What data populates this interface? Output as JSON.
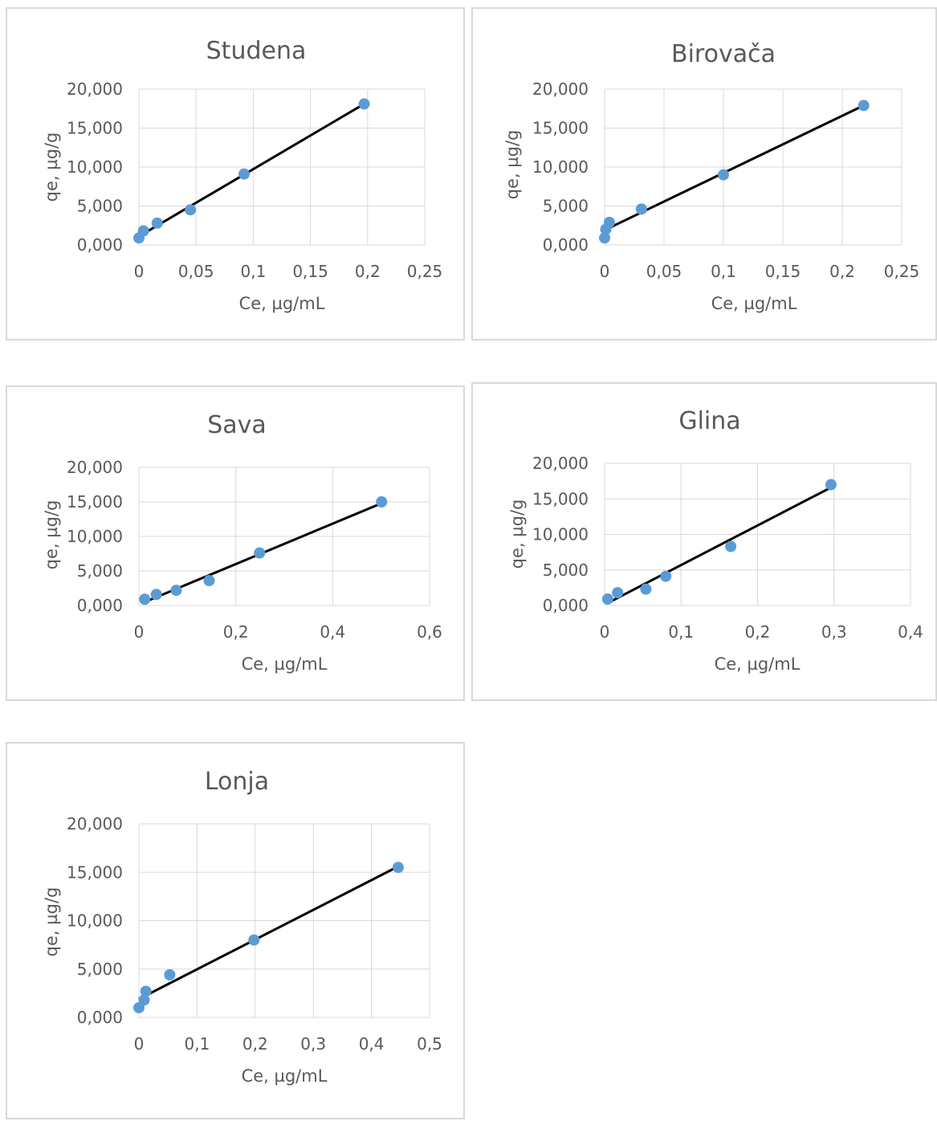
{
  "colors": {
    "marker": "#5b9bd5",
    "trendline": "#000000",
    "grid": "#d9d9d9",
    "text": "#595959"
  },
  "chart_data": [
    {
      "type": "scatter",
      "title": "Studena",
      "xlabel": "Ce, µg/mL",
      "ylabel": "qe, µg/g",
      "xlim": [
        0,
        0.25
      ],
      "ylim": [
        0,
        20
      ],
      "x_ticks": [
        "0",
        "0,05",
        "0,1",
        "0,15",
        "0,2",
        "0,25"
      ],
      "y_ticks": [
        "0,000",
        "5,000",
        "10,000",
        "15,000",
        "20,000"
      ],
      "x_tick_values": [
        0,
        0.05,
        0.1,
        0.15,
        0.2,
        0.25
      ],
      "y_tick_values": [
        0,
        5,
        10,
        15,
        20
      ],
      "grid": true,
      "legend": "none",
      "points": [
        [
          0.0,
          0.9
        ],
        [
          0.004,
          1.8
        ],
        [
          0.016,
          2.8
        ],
        [
          0.045,
          4.5
        ],
        [
          0.092,
          9.1
        ],
        [
          0.197,
          18.1
        ]
      ],
      "trendline": [
        [
          0.0,
          1.1
        ],
        [
          0.197,
          18.1
        ]
      ]
    },
    {
      "type": "scatter",
      "title": "Birovača",
      "xlabel": "Ce, µg/mL",
      "ylabel": "qe, µg/g",
      "xlim": [
        0,
        0.25
      ],
      "ylim": [
        0,
        20
      ],
      "x_ticks": [
        "0",
        "0,05",
        "0,1",
        "0,15",
        "0,2",
        "0,25"
      ],
      "y_ticks": [
        "0,000",
        "5,000",
        "10,000",
        "15,000",
        "20,000"
      ],
      "x_tick_values": [
        0,
        0.05,
        0.1,
        0.15,
        0.2,
        0.25
      ],
      "y_tick_values": [
        0,
        5,
        10,
        15,
        20
      ],
      "grid": true,
      "legend": "none",
      "points": [
        [
          0.0,
          0.9
        ],
        [
          0.001,
          2.0
        ],
        [
          0.004,
          2.9
        ],
        [
          0.031,
          4.6
        ],
        [
          0.1,
          9.0
        ],
        [
          0.218,
          17.9
        ]
      ],
      "trendline": [
        [
          0.0,
          1.9
        ],
        [
          0.218,
          17.9
        ]
      ]
    },
    {
      "type": "scatter",
      "title": "Sava",
      "xlabel": "Ce, µg/mL",
      "ylabel": "qe, µg/g",
      "xlim": [
        0,
        0.6
      ],
      "ylim": [
        0,
        20
      ],
      "x_ticks": [
        "0",
        "0,2",
        "0,4",
        "0,6"
      ],
      "y_ticks": [
        "0,000",
        "5,000",
        "10,000",
        "15,000",
        "20,000"
      ],
      "x_tick_values": [
        0,
        0.2,
        0.4,
        0.6
      ],
      "y_tick_values": [
        0,
        5,
        10,
        15,
        20
      ],
      "grid": true,
      "legend": "none",
      "points": [
        [
          0.012,
          0.9
        ],
        [
          0.036,
          1.6
        ],
        [
          0.077,
          2.2
        ],
        [
          0.145,
          3.6
        ],
        [
          0.249,
          7.6
        ],
        [
          0.501,
          15.0
        ]
      ],
      "trendline": [
        [
          0.012,
          0.5
        ],
        [
          0.501,
          14.8
        ]
      ]
    },
    {
      "type": "scatter",
      "title": "Glina",
      "xlabel": "Ce, µg/mL",
      "ylabel": "qe, µg/g",
      "xlim": [
        0,
        0.4
      ],
      "ylim": [
        0,
        20
      ],
      "x_ticks": [
        "0",
        "0,1",
        "0,2",
        "0,3",
        "0,4"
      ],
      "y_ticks": [
        "0,000",
        "5,000",
        "10,000",
        "15,000",
        "20,000"
      ],
      "x_tick_values": [
        0,
        0.1,
        0.2,
        0.3,
        0.4
      ],
      "y_tick_values": [
        0,
        5,
        10,
        15,
        20
      ],
      "grid": true,
      "legend": "none",
      "points": [
        [
          0.004,
          0.9
        ],
        [
          0.017,
          1.8
        ],
        [
          0.054,
          2.3
        ],
        [
          0.08,
          4.1
        ],
        [
          0.165,
          8.3
        ],
        [
          0.296,
          17.0
        ]
      ],
      "trendline": [
        [
          0.005,
          0.4
        ],
        [
          0.296,
          16.6
        ]
      ]
    },
    {
      "type": "scatter",
      "title": "Lonja",
      "xlabel": "Ce, µg/mL",
      "ylabel": "qe, µg/g",
      "xlim": [
        0,
        0.5
      ],
      "ylim": [
        0,
        20
      ],
      "x_ticks": [
        "0",
        "0,1",
        "0,2",
        "0,3",
        "0,4",
        "0,5"
      ],
      "y_ticks": [
        "0,000",
        "5,000",
        "10,000",
        "15,000",
        "20,000"
      ],
      "x_tick_values": [
        0,
        0.1,
        0.2,
        0.3,
        0.4,
        0.5
      ],
      "y_tick_values": [
        0,
        5,
        10,
        15,
        20
      ],
      "grid": true,
      "legend": "none",
      "points": [
        [
          0.0,
          1.0
        ],
        [
          0.009,
          1.8
        ],
        [
          0.012,
          2.7
        ],
        [
          0.053,
          4.4
        ],
        [
          0.198,
          8.0
        ],
        [
          0.446,
          15.5
        ]
      ],
      "trendline": [
        [
          0.0,
          1.9
        ],
        [
          0.446,
          15.6
        ]
      ]
    }
  ]
}
